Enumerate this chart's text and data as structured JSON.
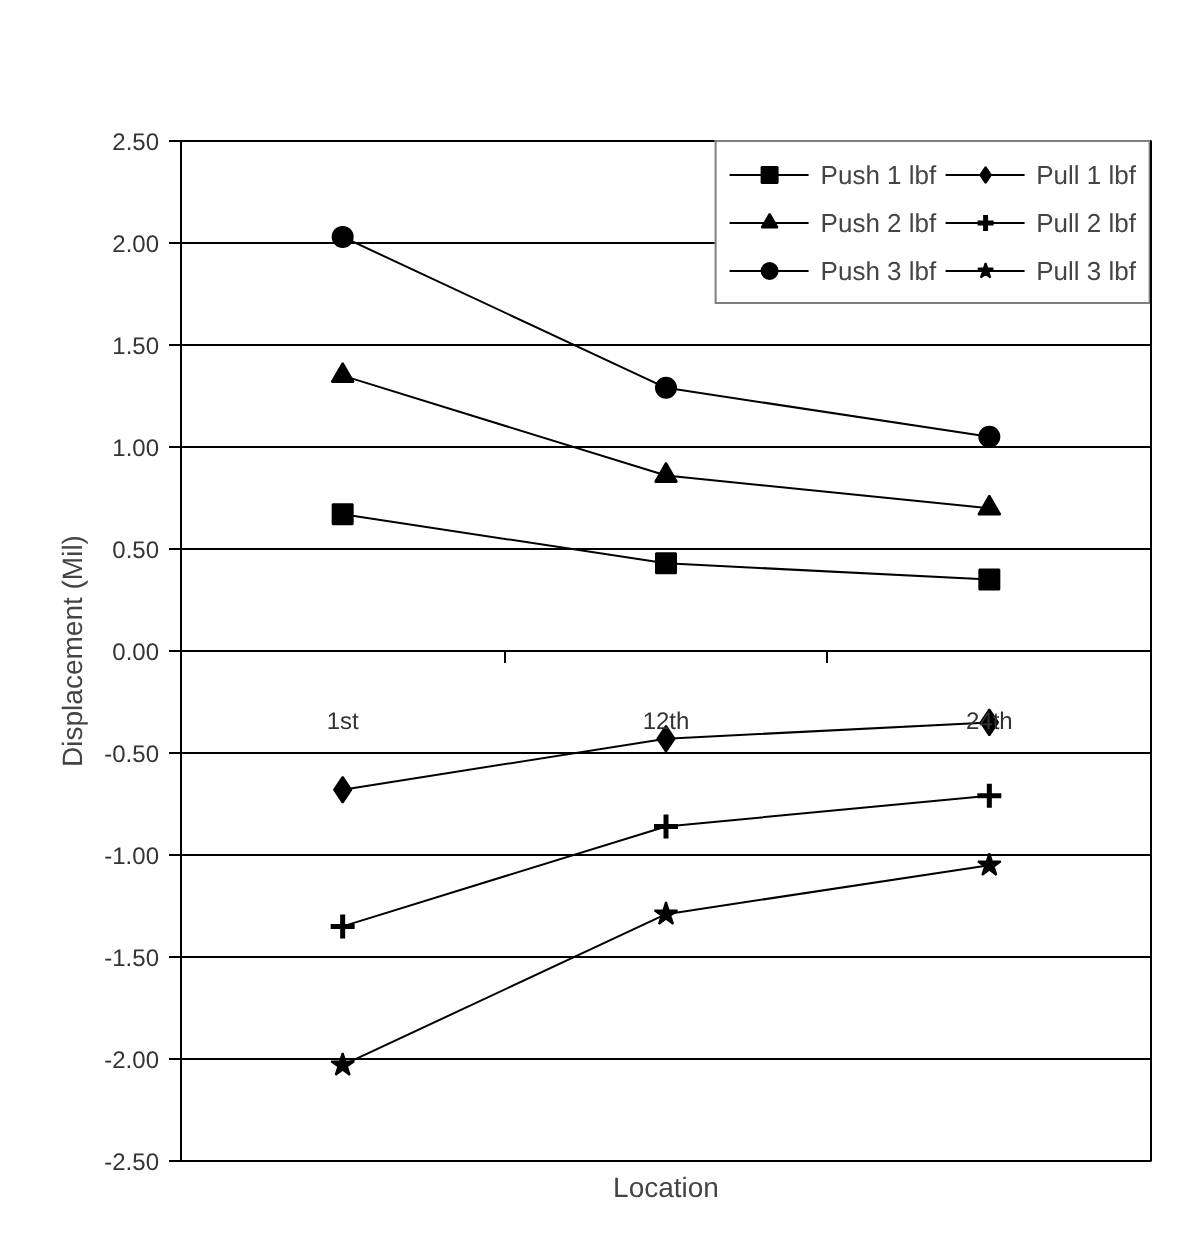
{
  "chart_data": {
    "type": "line",
    "xlabel": "Location",
    "ylabel": "Displacement (Mil)",
    "categories": [
      "1st",
      "12th",
      "24th"
    ],
    "series": [
      {
        "name": "Push 1 lbf",
        "color": "#000000",
        "marker": "square",
        "values": [
          0.67,
          0.43,
          0.35
        ]
      },
      {
        "name": "Push 2 lbf",
        "color": "#000000",
        "marker": "triangle",
        "values": [
          1.35,
          0.86,
          0.7
        ]
      },
      {
        "name": "Push 3 lbf",
        "color": "#000000",
        "marker": "circle",
        "values": [
          2.03,
          1.29,
          1.05
        ]
      },
      {
        "name": "Pull 1 lbf",
        "color": "#000000",
        "marker": "diamond",
        "values": [
          -0.68,
          -0.43,
          -0.35
        ]
      },
      {
        "name": "Pull 2 lbf",
        "color": "#000000",
        "marker": "cross",
        "values": [
          -1.35,
          -0.86,
          -0.71
        ]
      },
      {
        "name": "Pull 3 lbf",
        "color": "#000000",
        "marker": "star",
        "values": [
          -2.03,
          -1.29,
          -1.05
        ]
      }
    ],
    "ylim": [
      -2.5,
      2.5
    ],
    "yticks": [
      {
        "value": -2.5,
        "label": "-2.50"
      },
      {
        "value": -2.0,
        "label": "-2.00"
      },
      {
        "value": -1.5,
        "label": "-1.50"
      },
      {
        "value": -1.0,
        "label": "-1.00"
      },
      {
        "value": -0.5,
        "label": "-0.50"
      },
      {
        "value": 0,
        "label": "0.00"
      },
      {
        "value": 0.5,
        "label": "0.50"
      },
      {
        "value": 1.0,
        "label": "1.00"
      },
      {
        "value": 1.5,
        "label": "1.50"
      },
      {
        "value": 2.0,
        "label": "2.00"
      },
      {
        "value": 2.5,
        "label": "2.50"
      }
    ],
    "grid": "y",
    "legend": "top right",
    "line_style": "solid"
  }
}
